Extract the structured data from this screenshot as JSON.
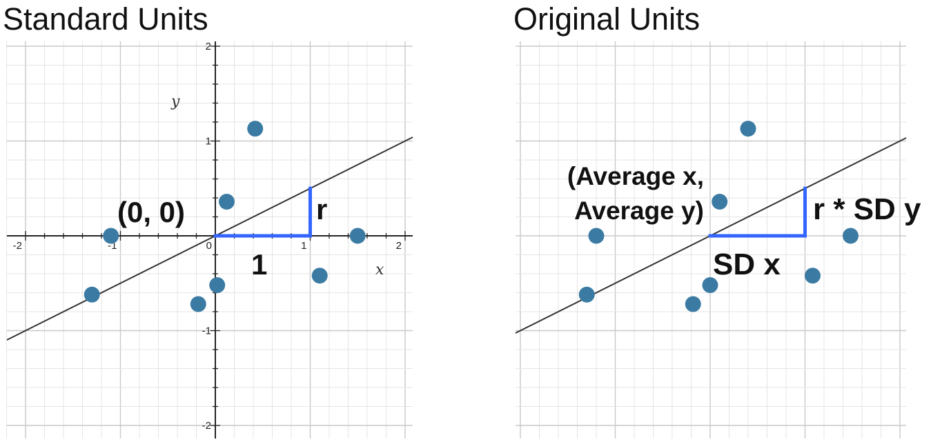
{
  "chart_data": [
    {
      "type": "scatter",
      "title": "Standard Units",
      "xlabel": "x",
      "ylabel": "y",
      "xlim": [
        -2.1,
        2.1
      ],
      "ylim": [
        -2.1,
        2.1
      ],
      "grid": true,
      "x_ticks": [
        "-2",
        "-1",
        "0",
        "1",
        "2"
      ],
      "y_ticks": [
        "2",
        "1",
        "-1",
        "-2"
      ],
      "points": [
        {
          "x": -1.3,
          "y": -0.62
        },
        {
          "x": -1.1,
          "y": 0.0
        },
        {
          "x": -0.18,
          "y": -0.72
        },
        {
          "x": 0.02,
          "y": -0.52
        },
        {
          "x": 0.12,
          "y": 0.36
        },
        {
          "x": 0.42,
          "y": 1.13
        },
        {
          "x": 1.1,
          "y": -0.42
        },
        {
          "x": 1.5,
          "y": 0.0
        }
      ],
      "regression_line": {
        "slope": 0.5,
        "intercept": 0
      },
      "slope_triangle": {
        "run": 1,
        "rise": 0.5,
        "color": "#3366ff"
      },
      "annotations": {
        "origin": "(0, 0)",
        "run": "1",
        "rise": "r"
      }
    },
    {
      "type": "scatter",
      "title": "Original Units",
      "grid": true,
      "points": [
        {
          "x": -1.3,
          "y": -0.62
        },
        {
          "x": -1.2,
          "y": 0.0
        },
        {
          "x": -0.18,
          "y": -0.72
        },
        {
          "x": 0.0,
          "y": -0.52
        },
        {
          "x": 0.1,
          "y": 0.36
        },
        {
          "x": 0.4,
          "y": 1.13
        },
        {
          "x": 1.08,
          "y": -0.42
        },
        {
          "x": 1.48,
          "y": 0.0
        }
      ],
      "regression_line": {
        "slope": 0.5,
        "intercept": 0
      },
      "slope_triangle": {
        "run": 1,
        "rise": 0.5,
        "color": "#3366ff"
      },
      "annotations": {
        "origin_line1": "(Average x,",
        "origin_line2": "Average y)",
        "run": "SD x",
        "rise": "r * SD y"
      }
    }
  ],
  "colors": {
    "point": "#3b7ba3",
    "line": "#333333",
    "triangle": "#3366ff",
    "grid_major": "#c8c8c8",
    "grid_minor": "#e4e4e4",
    "axis": "#222222"
  }
}
